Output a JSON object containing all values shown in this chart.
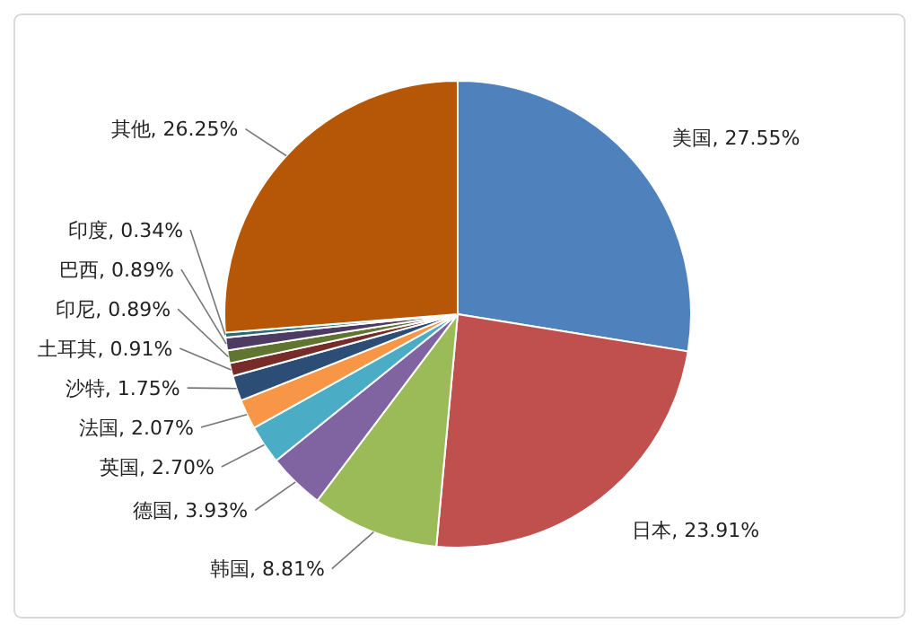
{
  "chart_data": {
    "type": "pie",
    "categories": [
      "美国",
      "日本",
      "韩国",
      "德国",
      "英国",
      "法国",
      "沙特",
      "土耳其",
      "印尼",
      "巴西",
      "印度",
      "其他"
    ],
    "values": [
      27.55,
      23.91,
      8.81,
      3.93,
      2.7,
      2.07,
      1.75,
      0.91,
      0.89,
      0.89,
      0.34,
      26.25
    ],
    "colors": [
      "#4f81bd",
      "#c0504d",
      "#9bbb59",
      "#8064a2",
      "#4bacc6",
      "#f79646",
      "#2c4d75",
      "#772c2a",
      "#5f7530",
      "#4d3b62",
      "#276a7c",
      "#b65708"
    ],
    "value_labels": [
      "27.55%",
      "23.91%",
      "8.81%",
      "3.93%",
      "2.70%",
      "2.07%",
      "1.75%",
      "0.91%",
      "0.89%",
      "0.89%",
      "0.34%",
      "26.25%"
    ]
  }
}
